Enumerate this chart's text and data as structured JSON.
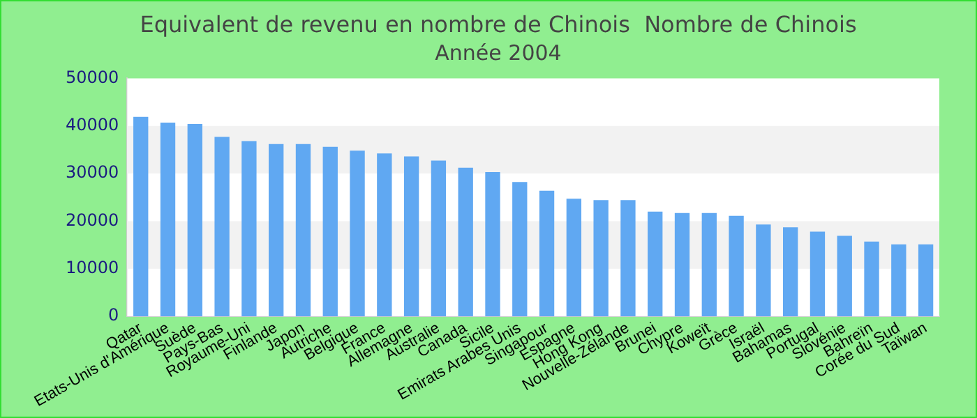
{
  "chart_data": {
    "type": "bar",
    "title": "Equivalent de revenu en nombre de Chinois  Nombre de Chinois",
    "subtitle": "Année 2004",
    "categories": [
      "Qatar",
      "Etats-Unis d'Amérique",
      "Suède",
      "Pays-Bas",
      "Royaume-Uni",
      "Finlande",
      "Japon",
      "Autriche",
      "Belgique",
      "France",
      "Allemagne",
      "Australie",
      "Canada",
      "Sicile",
      "Emirats Arabes Unis",
      "Singapour",
      "Espagne",
      "Hong Kong",
      "Nouvelle-Zélande",
      "Brunei",
      "Chypre",
      "Koweït",
      "Grèce",
      "Israël",
      "Bahamas",
      "Portugal",
      "Slovénie",
      "Bahreïn",
      "Corée du Sud",
      "Taïwan"
    ],
    "values": [
      41900,
      40700,
      40400,
      37700,
      36800,
      36200,
      36200,
      35600,
      34800,
      34200,
      33600,
      32700,
      31200,
      30300,
      28200,
      26400,
      24700,
      24400,
      24400,
      22000,
      21700,
      21700,
      21100,
      19300,
      18700,
      17800,
      16900,
      15700,
      15100,
      15100
    ],
    "color": "#60a8f2",
    "ylim": [
      0,
      50000
    ],
    "yticks": [
      0,
      10000,
      20000,
      30000,
      40000,
      50000
    ],
    "bands": [
      {
        "axis": "y",
        "from": 10000,
        "to": 20000,
        "color": "#f2f2f2"
      },
      {
        "axis": "y",
        "from": 30000,
        "to": 40000,
        "color": "#f2f2f2"
      }
    ],
    "legend": false
  }
}
